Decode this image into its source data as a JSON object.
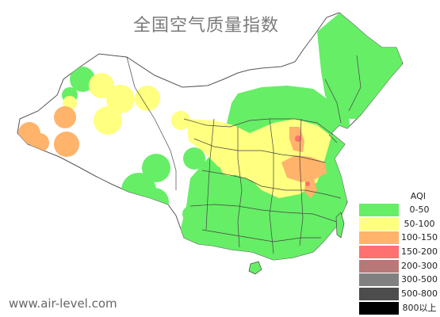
{
  "title": "全国空气质量指数",
  "source": "www.air-level.com",
  "legend": {
    "title": "AQI",
    "items": [
      {
        "label": "0-50",
        "color": "#66ee66"
      },
      {
        "label": "50-100",
        "color": "#ffff80"
      },
      {
        "label": "100-150",
        "color": "#ffb36b"
      },
      {
        "label": "150-200",
        "color": "#ff7070"
      },
      {
        "label": "200-300",
        "color": "#b87878"
      },
      {
        "label": "300-500",
        "color": "#808080"
      },
      {
        "label": "500-800",
        "color": "#4d4d4d"
      },
      {
        "label": "800以上",
        "color": "#000000"
      }
    ]
  },
  "map": {
    "region": "China",
    "land_color": "#ffffff",
    "border_color": "#555555"
  }
}
